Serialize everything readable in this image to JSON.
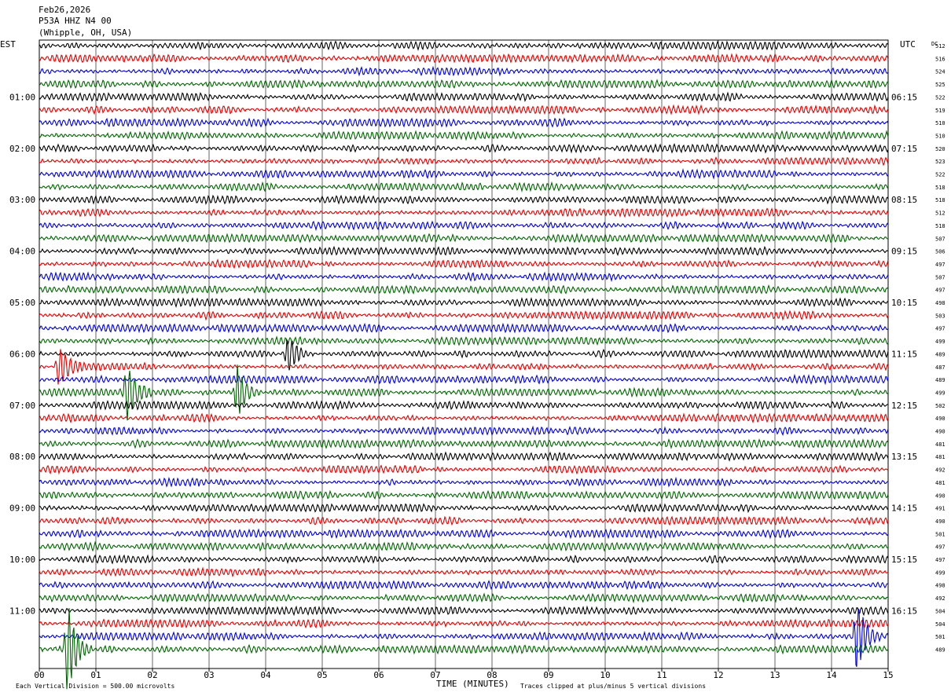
{
  "header": {
    "date": "Feb26,2026",
    "station": "P53A HHZ N4 00",
    "location": "(Whipple, OH, USA)"
  },
  "axis": {
    "left_label": "EST",
    "right_label": "UTC",
    "dc_label": "DC",
    "x_title": "TIME (MINUTES)",
    "x_ticks": [
      "00",
      "01",
      "02",
      "03",
      "04",
      "05",
      "06",
      "07",
      "08",
      "09",
      "10",
      "11",
      "12",
      "13",
      "14",
      "15"
    ]
  },
  "footer": {
    "scale_note": "Each Vertical Division =  500.00 microvolts",
    "clip_note": "Traces clipped at plus/minus 5 vertical divisions"
  },
  "colors": [
    "#000000",
    "#e00000",
    "#0000d0",
    "#006400"
  ],
  "chart_data": {
    "type": "line",
    "title": "P53A HHZ N4 00",
    "xlabel": "TIME (MINUTES)",
    "xlim": [
      0,
      15
    ],
    "rows_per_hour": 4,
    "minutes_per_row": 15,
    "left_hour_labels": [
      "01:00",
      "02:00",
      "03:00",
      "04:00",
      "05:00",
      "06:00",
      "07:00",
      "08:00",
      "09:00",
      "10:00",
      "11:00"
    ],
    "right_hour_labels": [
      "06:15",
      "07:15",
      "08:15",
      "09:15",
      "10:15",
      "11:15",
      "12:15",
      "13:15",
      "14:15",
      "15:15",
      "16:15"
    ],
    "dc_offsets": [
      512,
      516,
      524,
      525,
      522,
      519,
      510,
      510,
      520,
      523,
      522,
      518,
      518,
      512,
      518,
      507,
      506,
      497,
      507,
      497,
      498,
      503,
      497,
      499,
      489,
      487,
      489,
      499,
      502,
      490,
      490,
      481,
      481,
      492,
      481,
      490,
      491,
      490,
      501,
      497,
      497,
      499,
      498,
      492,
      504,
      504,
      501,
      489
    ],
    "events": [
      {
        "row": 24,
        "minute": 4.4,
        "amplitude": 1.0
      },
      {
        "row": 25,
        "minute": 0.35,
        "amplitude": 1.1
      },
      {
        "row": 27,
        "minute": 1.55,
        "amplitude": 1.4
      },
      {
        "row": 27,
        "minute": 3.5,
        "amplitude": 1.4
      },
      {
        "row": 46,
        "minute": 14.45,
        "amplitude": 2.0
      },
      {
        "row": 47,
        "minute": 0.5,
        "amplitude": 2.4
      }
    ]
  }
}
